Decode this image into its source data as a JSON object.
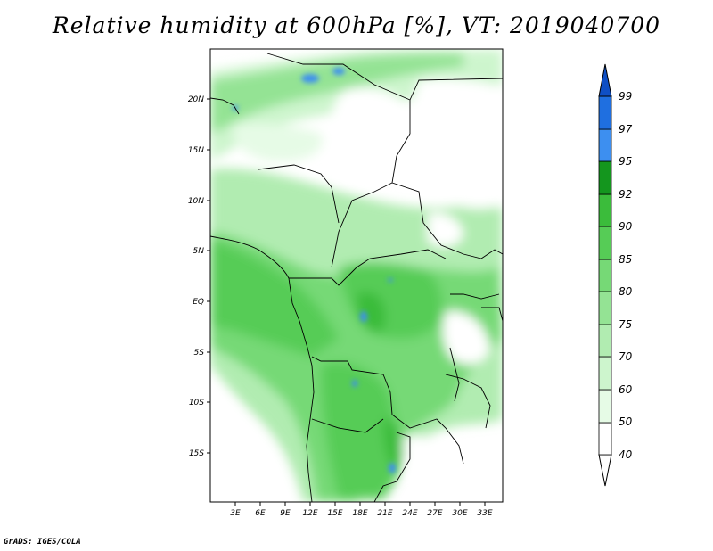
{
  "title": "Relative humidity at 600hPa [%], VT: 2019040700",
  "footer": "GrADS: IGES/COLA",
  "map": {
    "lon_labels": [
      "3E",
      "6E",
      "9E",
      "12E",
      "15E",
      "18E",
      "21E",
      "24E",
      "27E",
      "30E",
      "33E"
    ],
    "lat_labels": [
      "20N",
      "15N",
      "10N",
      "5N",
      "EQ",
      "5S",
      "10S",
      "15S"
    ]
  },
  "colorbar": {
    "levels": [
      "40",
      "50",
      "60",
      "70",
      "75",
      "80",
      "85",
      "90",
      "92",
      "95",
      "97",
      "99"
    ],
    "colors": [
      "#ffffff",
      "#e6fbe6",
      "#cdf5cd",
      "#b1ecb1",
      "#94e394",
      "#76d976",
      "#56cc56",
      "#3bbc3b",
      "#27aa27",
      "#14961e",
      "#3d8ff0",
      "#1f6fe0",
      "#0f4fc4"
    ]
  }
}
